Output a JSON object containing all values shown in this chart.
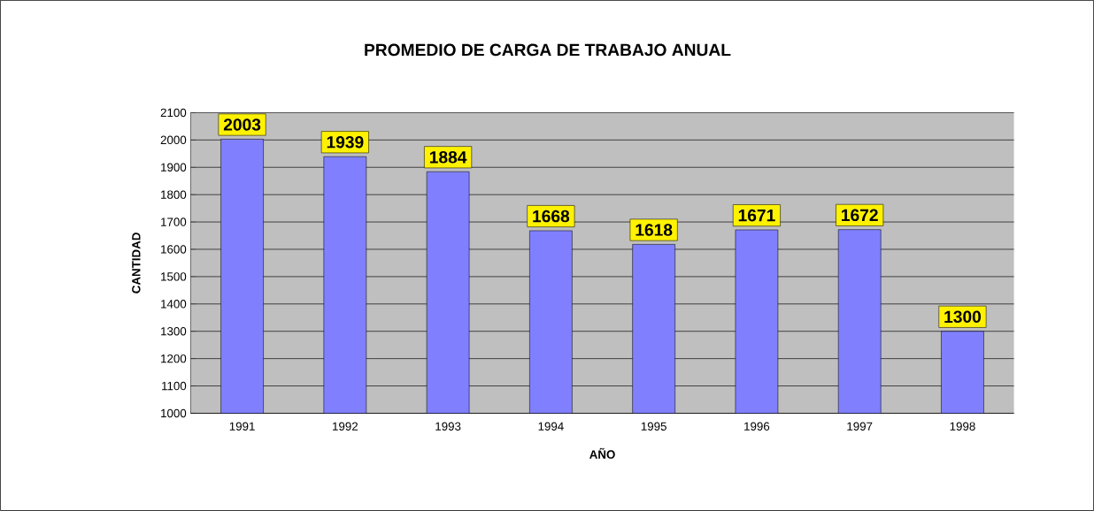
{
  "chart_data": {
    "type": "bar",
    "title": "PROMEDIO DE CARGA DE TRABAJO ANUAL",
    "xlabel": "AÑO",
    "ylabel": "CANTIDAD",
    "categories": [
      "1991",
      "1992",
      "1993",
      "1994",
      "1995",
      "1996",
      "1997",
      "1998"
    ],
    "values": [
      2003,
      1939,
      1884,
      1668,
      1618,
      1671,
      1672,
      1300
    ],
    "color": "#8080ff",
    "ylim": [
      1000,
      2100
    ],
    "yticks": [
      1000,
      1100,
      1200,
      1300,
      1400,
      1500,
      1600,
      1700,
      1800,
      1900,
      2000,
      2100
    ],
    "grid": "y",
    "data_labels": true
  }
}
